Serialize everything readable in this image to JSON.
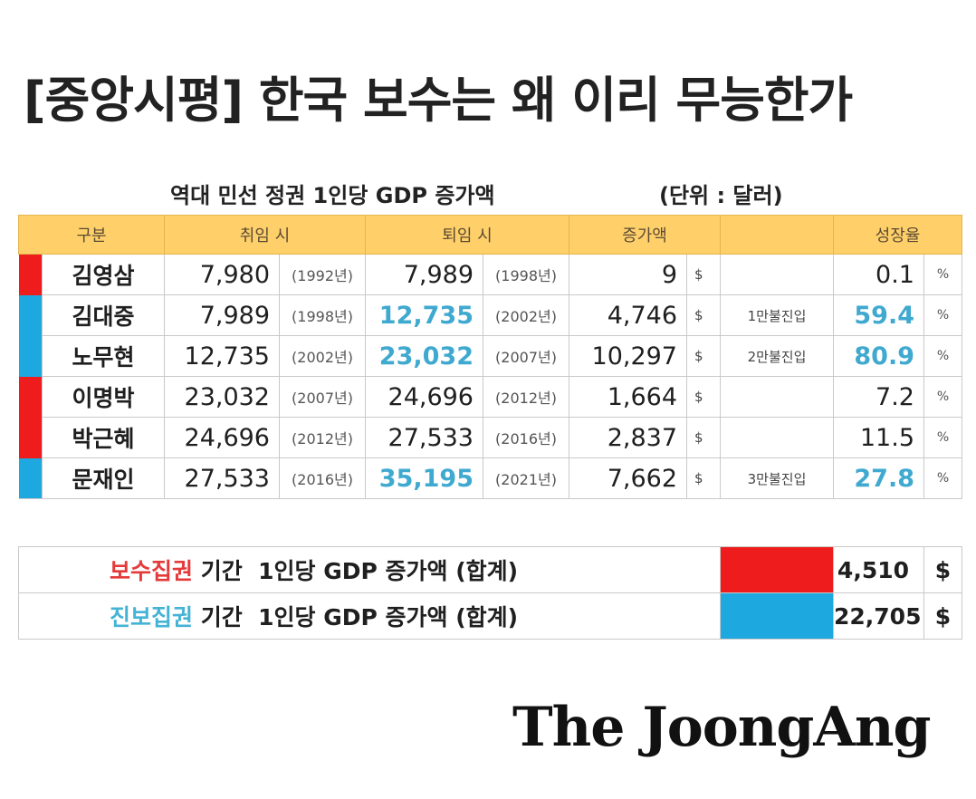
{
  "headline": "[중앙시평] 한국 보수는 왜 이리 무능한가",
  "table_caption": "역대 민선 정권 1인당 GDP 증가액",
  "unit": "(단위 : 달러)",
  "headers": {
    "category": "구분",
    "start": "취임 시",
    "end": "퇴임 시",
    "increase": "증가액",
    "growth": "성장율"
  },
  "colors": {
    "conservative": "#ee1c1c",
    "progressive": "#1ea8e0",
    "highlight": "#3fa9d0",
    "header_bg": "#ffd06a"
  },
  "rows": [
    {
      "party": "conservative",
      "name": "김영삼",
      "start": "7,980",
      "start_year": "(1992년)",
      "end": "7,989",
      "end_year": "(1998년)",
      "end_highlight": false,
      "increase": "9",
      "dollar": "$",
      "note": "",
      "growth": "0.1",
      "growth_highlight": false,
      "pct": "%"
    },
    {
      "party": "progressive",
      "name": "김대중",
      "start": "7,989",
      "start_year": "(1998년)",
      "end": "12,735",
      "end_year": "(2002년)",
      "end_highlight": true,
      "increase": "4,746",
      "dollar": "$",
      "note": "1만불진입",
      "growth": "59.4",
      "growth_highlight": true,
      "pct": "%"
    },
    {
      "party": "progressive",
      "name": "노무현",
      "start": "12,735",
      "start_year": "(2002년)",
      "end": "23,032",
      "end_year": "(2007년)",
      "end_highlight": true,
      "increase": "10,297",
      "dollar": "$",
      "note": "2만불진입",
      "growth": "80.9",
      "growth_highlight": true,
      "pct": "%"
    },
    {
      "party": "conservative",
      "name": "이명박",
      "start": "23,032",
      "start_year": "(2007년)",
      "end": "24,696",
      "end_year": "(2012년)",
      "end_highlight": false,
      "increase": "1,664",
      "dollar": "$",
      "note": "",
      "growth": "7.2",
      "growth_highlight": false,
      "pct": "%"
    },
    {
      "party": "conservative",
      "name": "박근혜",
      "start": "24,696",
      "start_year": "(2012년)",
      "end": "27,533",
      "end_year": "(2016년)",
      "end_highlight": false,
      "increase": "2,837",
      "dollar": "$",
      "note": "",
      "growth": "11.5",
      "growth_highlight": false,
      "pct": "%"
    },
    {
      "party": "progressive",
      "name": "문재인",
      "start": "27,533",
      "start_year": "(2016년)",
      "end": "35,195",
      "end_year": "(2021년)",
      "end_highlight": true,
      "increase": "7,662",
      "dollar": "$",
      "note": "3만불진입",
      "growth": "27.8",
      "growth_highlight": true,
      "pct": "%"
    }
  ],
  "summary": [
    {
      "party": "conservative",
      "label_colored": "보수집권",
      "label_rest": " 기간  1인당 GDP 증가액 (합계)",
      "value": "4,510",
      "dollar": "$"
    },
    {
      "party": "progressive",
      "label_colored": "진보집권",
      "label_rest": " 기간  1인당 GDP 증가액 (합계)",
      "value": "22,705",
      "dollar": "$"
    }
  ],
  "logo": "The JoongAng"
}
